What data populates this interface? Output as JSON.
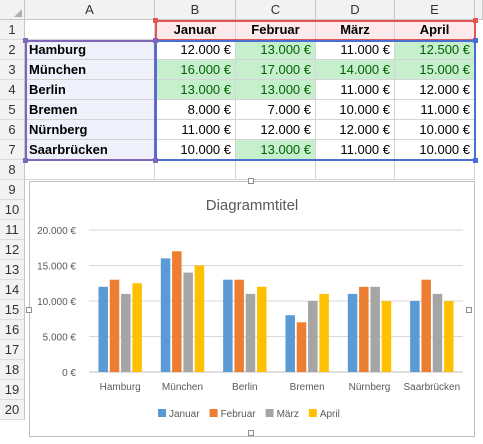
{
  "columns": [
    "A",
    "B",
    "C",
    "D",
    "E"
  ],
  "rows": [
    "1",
    "2",
    "3",
    "4",
    "5",
    "6",
    "7",
    "8",
    "9",
    "10",
    "11",
    "12",
    "13",
    "14",
    "15",
    "16",
    "17",
    "18",
    "19",
    "20"
  ],
  "table": {
    "headers": [
      "Januar",
      "Februar",
      "März",
      "April"
    ],
    "data": [
      {
        "city": "Hamburg",
        "values": [
          "12.000 €",
          "13.000 €",
          "11.000 €",
          "12.500 €"
        ],
        "green": [
          false,
          true,
          false,
          true
        ]
      },
      {
        "city": "München",
        "values": [
          "16.000 €",
          "17.000 €",
          "14.000 €",
          "15.000 €"
        ],
        "green": [
          true,
          true,
          true,
          true
        ]
      },
      {
        "city": "Berlin",
        "values": [
          "13.000 €",
          "13.000 €",
          "11.000 €",
          "12.000 €"
        ],
        "green": [
          true,
          true,
          false,
          false
        ]
      },
      {
        "city": "Bremen",
        "values": [
          "8.000 €",
          "7.000 €",
          "10.000 €",
          "11.000 €"
        ],
        "green": [
          false,
          false,
          false,
          false
        ]
      },
      {
        "city": "Nürnberg",
        "values": [
          "11.000 €",
          "12.000 €",
          "12.000 €",
          "10.000 €"
        ],
        "green": [
          false,
          false,
          false,
          false
        ]
      },
      {
        "city": "Saarbrücken",
        "values": [
          "10.000 €",
          "13.000 €",
          "11.000 €",
          "10.000 €"
        ],
        "green": [
          false,
          true,
          false,
          false
        ]
      }
    ]
  },
  "chart_data": {
    "type": "bar",
    "title": "Diagrammtitel",
    "categories": [
      "Hamburg",
      "München",
      "Berlin",
      "Bremen",
      "Nürnberg",
      "Saarbrücken"
    ],
    "series": [
      {
        "name": "Januar",
        "color": "#5b9bd5",
        "values": [
          12000,
          16000,
          13000,
          8000,
          11000,
          10000
        ]
      },
      {
        "name": "Februar",
        "color": "#ed7d31",
        "values": [
          13000,
          17000,
          13000,
          7000,
          12000,
          13000
        ]
      },
      {
        "name": "März",
        "color": "#a5a5a5",
        "values": [
          11000,
          14000,
          11000,
          10000,
          12000,
          11000
        ]
      },
      {
        "name": "April",
        "color": "#ffc000",
        "values": [
          12500,
          15000,
          12000,
          11000,
          10000,
          10000
        ]
      }
    ],
    "ylim": [
      0,
      20000
    ],
    "yticks": [
      0,
      5000,
      10000,
      15000,
      20000
    ],
    "ytick_labels": [
      "0 €",
      "5.000 €",
      "10.000 €",
      "15.000 €",
      "20.000 €"
    ],
    "grid": true,
    "legend": "bottom"
  }
}
